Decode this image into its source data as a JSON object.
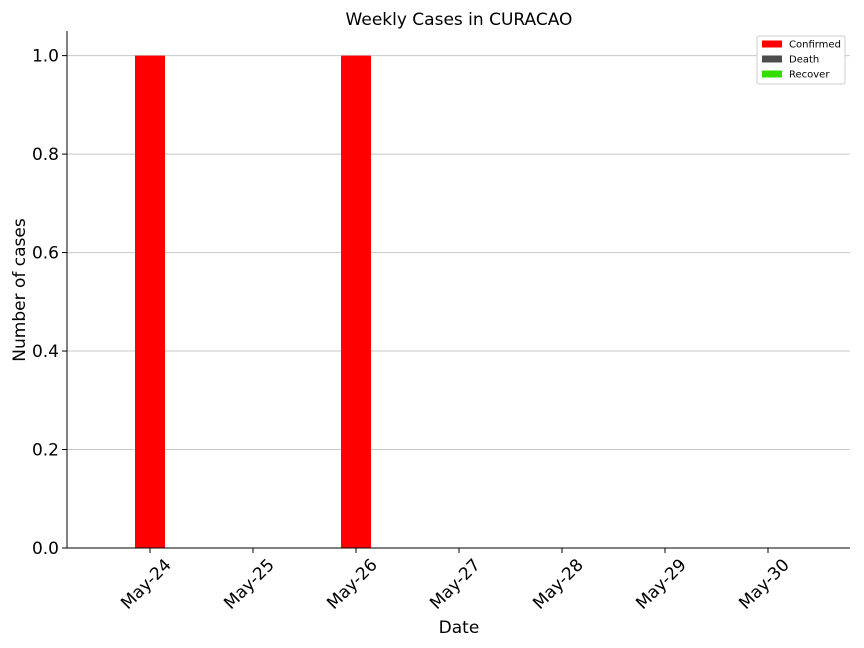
{
  "chart_data": {
    "type": "bar",
    "title": "Weekly Cases in CURACAO",
    "xlabel": "Date",
    "ylabel": "Number of cases",
    "categories": [
      "May-24",
      "May-25",
      "May-26",
      "May-27",
      "May-28",
      "May-29",
      "May-30"
    ],
    "series": [
      {
        "name": "Confirmed",
        "color": "#ff0000",
        "values": [
          1,
          0,
          1,
          0,
          0,
          0,
          0
        ]
      },
      {
        "name": "Death",
        "color": "#4d4d4d",
        "values": [
          0,
          0,
          0,
          0,
          0,
          0,
          0
        ]
      },
      {
        "name": "Recover",
        "color": "#33dd00",
        "values": [
          0,
          0,
          0,
          0,
          0,
          0,
          0
        ]
      }
    ],
    "ylim": [
      0,
      1.05
    ],
    "yticks": [
      "0.0",
      "0.2",
      "0.4",
      "0.6",
      "0.8",
      "1.0"
    ],
    "grid": "horizontal",
    "legend_position": "top-right"
  }
}
